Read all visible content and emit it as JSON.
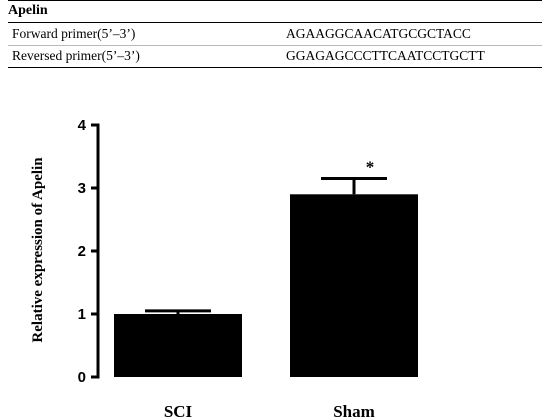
{
  "table": {
    "gene": "Apelin",
    "rows": [
      {
        "label": "Forward primer(5’–3’)",
        "sequence": "AGAAGGCAACATGCGCTACC"
      },
      {
        "label": "Reversed primer(5’–3’)",
        "sequence": "GGAGAGCCCTTCAATCCTGCTT"
      }
    ]
  },
  "chart_data": {
    "type": "bar",
    "categories": [
      "SCI",
      "Sham"
    ],
    "values": [
      1.0,
      2.9
    ],
    "errors": [
      0.05,
      0.25
    ],
    "annotations": [
      {
        "category": "Sham",
        "text": "*"
      }
    ],
    "ylabel": "Relative expression of Apelin",
    "ylim": [
      0,
      4
    ],
    "yticks": [
      0,
      1,
      2,
      3,
      4
    ],
    "bar_color": "#000000",
    "grid": false
  }
}
